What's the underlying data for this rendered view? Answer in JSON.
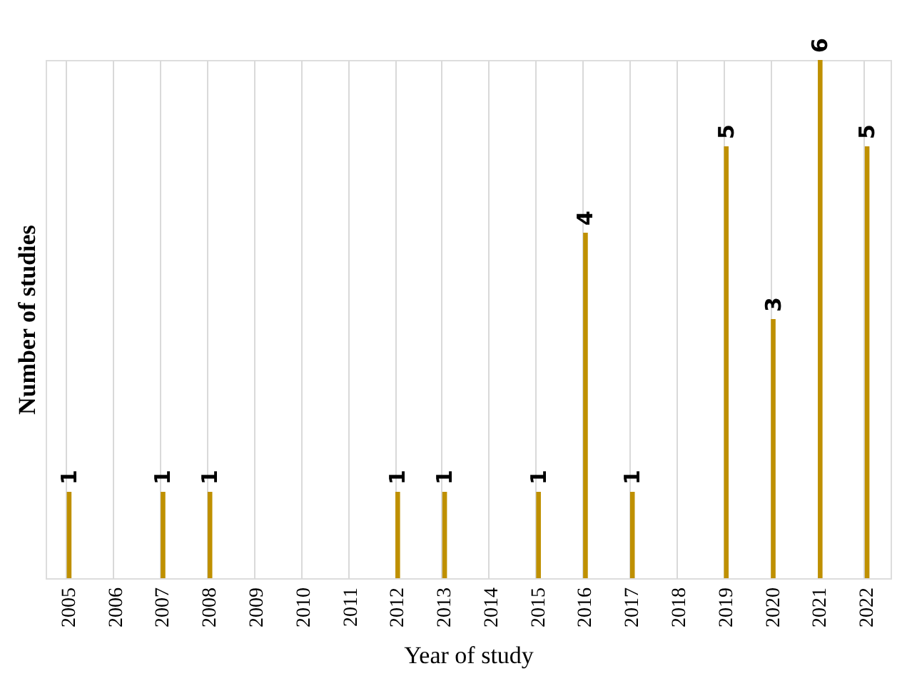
{
  "chart_data": {
    "type": "bar",
    "xlabel": "Year of study",
    "ylabel": "Number of studies",
    "categories": [
      "2005",
      "2006",
      "2007",
      "2008",
      "2009",
      "2010",
      "2011",
      "2012",
      "2013",
      "2014",
      "2015",
      "2016",
      "2017",
      "2018",
      "2019",
      "2020",
      "2021",
      "2022"
    ],
    "values": [
      1,
      0,
      1,
      1,
      0,
      0,
      0,
      1,
      1,
      0,
      1,
      4,
      1,
      0,
      5,
      3,
      6,
      5
    ],
    "value_labels": [
      "1",
      null,
      "1",
      "1",
      null,
      null,
      null,
      "1",
      "1",
      null,
      "1",
      "4",
      "1",
      null,
      "5",
      "3",
      "6",
      "5"
    ],
    "color": "#bf9000",
    "grid": "x",
    "tick_labels": "x"
  }
}
